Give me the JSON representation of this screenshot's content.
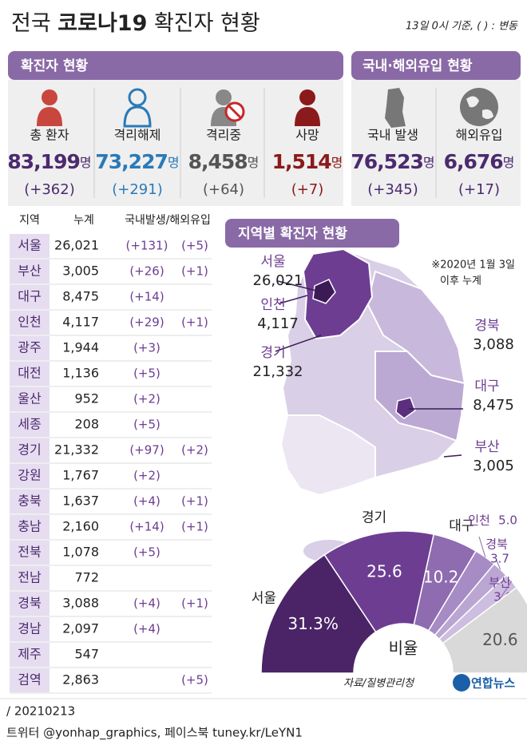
{
  "header": {
    "title_parts": [
      "전국 ",
      "코로나19",
      " 확진자 현황"
    ],
    "note": "13일 0시 기준, ( ) : 변동"
  },
  "summary": {
    "title": "확진자 현황",
    "unit": "명",
    "items": [
      {
        "label": "총 환자",
        "value": "83,199",
        "change": "(+362)"
      },
      {
        "label": "격리해제",
        "value": "73,227",
        "change": "(+291)"
      },
      {
        "label": "격리중",
        "value": "8,458",
        "change": "(+64)"
      },
      {
        "label": "사망",
        "value": "1,514",
        "change": "(+7)"
      }
    ]
  },
  "origin": {
    "title": "국내·해외유입 현황",
    "unit": "명",
    "items": [
      {
        "label": "국내 발생",
        "value": "76,523",
        "change": "(+345)"
      },
      {
        "label": "해외유입",
        "value": "6,676",
        "change": "(+17)"
      }
    ]
  },
  "table": {
    "header": [
      "지역",
      "누계",
      "국내발생/해외유입"
    ],
    "rows": [
      [
        "서울",
        "26,021",
        "(+131)",
        "(+5)"
      ],
      [
        "부산",
        "3,005",
        "(+26)",
        "(+1)"
      ],
      [
        "대구",
        "8,475",
        "(+14)",
        null
      ],
      [
        "인천",
        "4,117",
        "(+29)",
        "(+1)"
      ],
      [
        "광주",
        "1,944",
        "(+3)",
        null
      ],
      [
        "대전",
        "1,136",
        "(+5)",
        null
      ],
      [
        "울산",
        "952",
        "(+2)",
        null
      ],
      [
        "세종",
        "208",
        "(+5)",
        null
      ],
      [
        "경기",
        "21,332",
        "(+97)",
        "(+2)"
      ],
      [
        "강원",
        "1,767",
        "(+2)",
        null
      ],
      [
        "충북",
        "1,637",
        "(+4)",
        "(+1)"
      ],
      [
        "충남",
        "2,160",
        "(+14)",
        "(+1)"
      ],
      [
        "전북",
        "1,078",
        "(+5)",
        null
      ],
      [
        "전남",
        "772",
        null,
        null
      ],
      [
        "경북",
        "3,088",
        "(+4)",
        "(+1)"
      ],
      [
        "경남",
        "2,097",
        "(+4)",
        null
      ],
      [
        "제주",
        "547",
        null,
        null
      ],
      [
        "검역",
        "2,863",
        null,
        "(+5)"
      ]
    ]
  },
  "map": {
    "title": "지역별 확진자 현황",
    "note": [
      "※2020년 1월 3일",
      "이후 누계"
    ],
    "labels": [
      {
        "name": "서울",
        "value": "26,021"
      },
      {
        "name": "인천",
        "value": "4,117"
      },
      {
        "name": "경기",
        "value": "21,332"
      },
      {
        "name": "경북",
        "value": "3,088"
      },
      {
        "name": "대구",
        "value": "8,475"
      },
      {
        "name": "부산",
        "value": "3,005"
      }
    ]
  },
  "chart_data": {
    "type": "half-donut",
    "title": "비율",
    "categories": [
      "서울",
      "경기",
      "대구",
      "인천",
      "경북",
      "부산",
      null
    ],
    "values": [
      31.3,
      25.6,
      10.2,
      5.0,
      3.7,
      3.6,
      20.6
    ],
    "value_labels": [
      "31.3%",
      "25.6",
      "10.2",
      "5.0",
      "3.7",
      "3.6",
      "20.6"
    ],
    "colors": [
      "#4a2466",
      "#6d3d92",
      "#8f6bb0",
      "#a78bc4",
      "#bba6d3",
      "#cdbde0",
      "#d9d9d9"
    ]
  },
  "footer": {
    "source": "자료/질병관리청",
    "logo": "연합뉴스",
    "date": "/ 20210213",
    "social": "트위터 @yonhap_graphics, 페이스북 tuney.kr/LeYN1"
  }
}
